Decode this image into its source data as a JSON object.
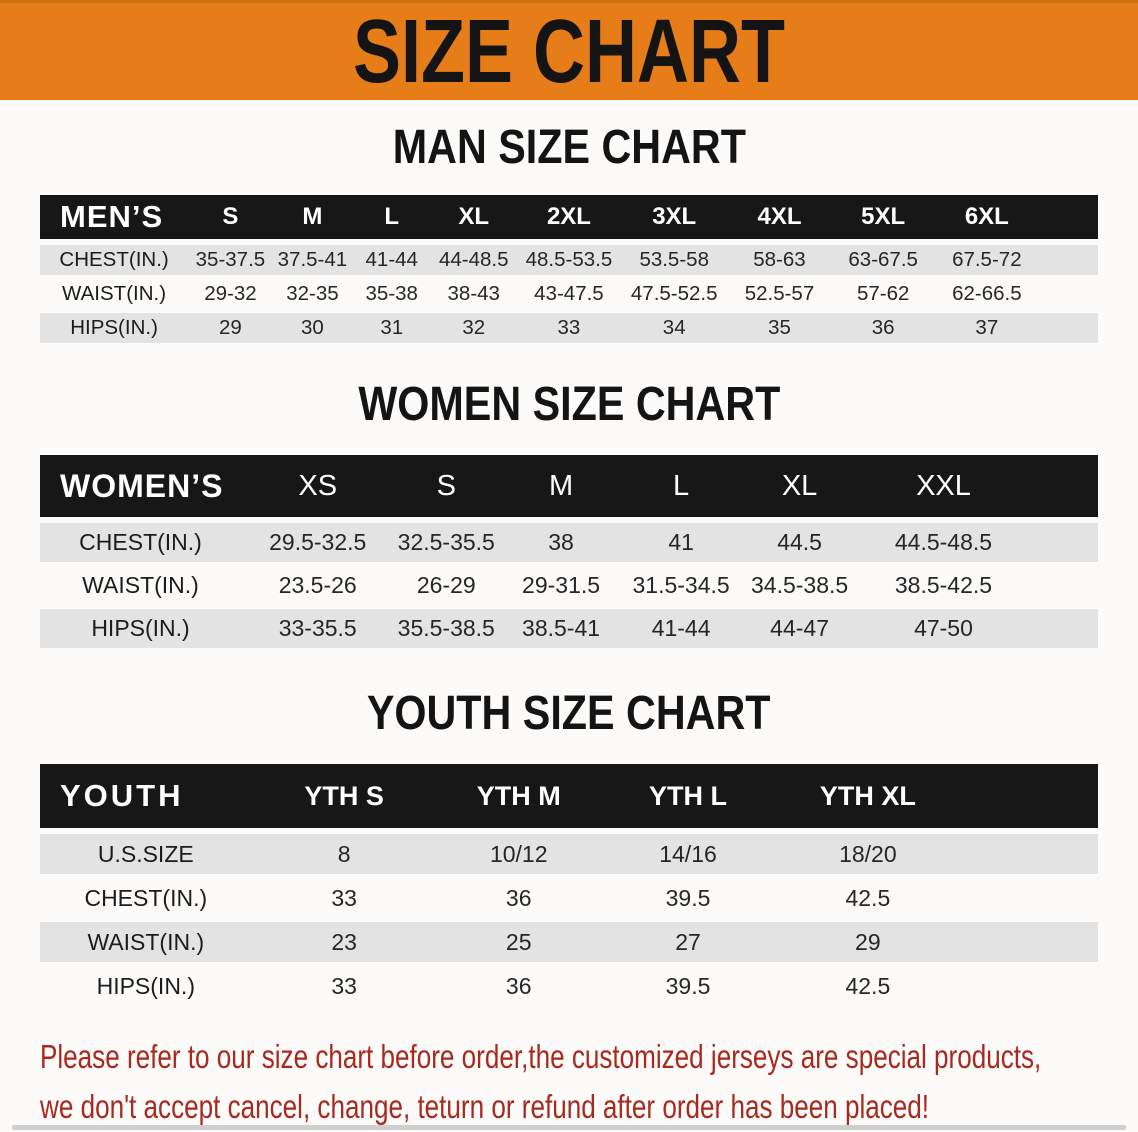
{
  "banner": {
    "title": "SIZE CHART"
  },
  "sections": [
    {
      "name": "men",
      "heading": "MAN SIZE CHART",
      "group_label": "MEN’S",
      "columns": [
        "S",
        "M",
        "L",
        "XL",
        "2XL",
        "3XL",
        "4XL",
        "5XL",
        "6XL"
      ],
      "rows": [
        {
          "label": "CHEST(IN.)",
          "values": [
            "35-37.5",
            "37.5-41",
            "41-44",
            "44-48.5",
            "48.5-53.5",
            "53.5-58",
            "58-63",
            "63-67.5",
            "67.5-72"
          ]
        },
        {
          "label": "WAIST(IN.)",
          "values": [
            "29-32",
            "32-35",
            "35-38",
            "38-43",
            "43-47.5",
            "47.5-52.5",
            "52.5-57",
            "57-62",
            "62-66.5"
          ]
        },
        {
          "label": "HIPS(IN.)",
          "values": [
            "29",
            "30",
            "31",
            "32",
            "33",
            "34",
            "35",
            "36",
            "37"
          ]
        }
      ]
    },
    {
      "name": "women",
      "heading": "WOMEN SIZE CHART",
      "group_label": "WOMEN’S",
      "columns": [
        "XS",
        "S",
        "M",
        "L",
        "XL",
        "XXL"
      ],
      "rows": [
        {
          "label": "CHEST(IN.)",
          "values": [
            "29.5-32.5",
            "32.5-35.5",
            "38",
            "41",
            "44.5",
            "44.5-48.5"
          ]
        },
        {
          "label": "WAIST(IN.)",
          "values": [
            "23.5-26",
            "26-29",
            "29-31.5",
            "31.5-34.5",
            "34.5-38.5",
            "38.5-42.5"
          ]
        },
        {
          "label": "HIPS(IN.)",
          "values": [
            "33-35.5",
            "35.5-38.5",
            "38.5-41",
            "41-44",
            "44-47",
            "47-50"
          ]
        }
      ]
    },
    {
      "name": "youth",
      "heading": "YOUTH SIZE CHART",
      "group_label": "YOUTH",
      "columns": [
        "YTH S",
        "YTH M",
        "YTH L",
        "YTH XL"
      ],
      "rows": [
        {
          "label": "U.S.SIZE",
          "values": [
            "8",
            "10/12",
            "14/16",
            "18/20"
          ]
        },
        {
          "label": "CHEST(IN.)",
          "values": [
            "33",
            "36",
            "39.5",
            "42.5"
          ]
        },
        {
          "label": "WAIST(IN.)",
          "values": [
            "23",
            "25",
            "27",
            "29"
          ]
        },
        {
          "label": "HIPS(IN.)",
          "values": [
            "33",
            "36",
            "39.5",
            "42.5"
          ]
        }
      ]
    }
  ],
  "disclaimer": {
    "line1": "Please refer to our size chart before order,the customized jerseys are special products,",
    "line2": "we don't accept cancel, change, teturn or refund after order has been placed!"
  },
  "colors": {
    "banner_orange": "#e67d18",
    "header_black": "#171717",
    "row_gray": "#e3e3e3",
    "page_background": "#fcfbf9",
    "disclaimer_red": "#a82a1f"
  }
}
